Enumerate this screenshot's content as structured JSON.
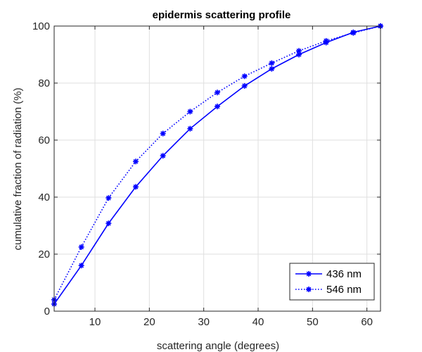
{
  "chart_data": {
    "type": "line",
    "title": "epidermis scattering profile",
    "xlabel": "scattering angle (degrees)",
    "ylabel": "cumulative fraction of radiation (%)",
    "xlim": [
      2.5,
      62.5
    ],
    "ylim": [
      0,
      100
    ],
    "xticks": [
      10,
      20,
      30,
      40,
      50,
      60
    ],
    "yticks": [
      0,
      20,
      40,
      60,
      80,
      100
    ],
    "grid": true,
    "legend_position": "bottom-right",
    "series": [
      {
        "name": "436 nm",
        "color": "#0000ff",
        "line_style": "solid",
        "marker": "asterisk",
        "x": [
          2.5,
          7.5,
          12.5,
          17.5,
          22.5,
          27.5,
          32.5,
          37.5,
          42.5,
          47.5,
          52.5,
          57.5,
          62.5
        ],
        "y": [
          2.5,
          16,
          30.8,
          43.6,
          54.5,
          64,
          71.8,
          79,
          85,
          90,
          94.2,
          97.8,
          100
        ]
      },
      {
        "name": "546 nm",
        "color": "#0000ff",
        "line_style": "dotted",
        "marker": "asterisk",
        "x": [
          2.5,
          7.5,
          12.5,
          17.5,
          22.5,
          27.5,
          32.5,
          37.5,
          42.5,
          47.5,
          52.5,
          57.5,
          62.5
        ],
        "y": [
          4,
          22.5,
          39.7,
          52.5,
          62.3,
          70,
          76.7,
          82.4,
          87,
          91.3,
          94.8,
          97.6,
          100
        ]
      }
    ]
  }
}
